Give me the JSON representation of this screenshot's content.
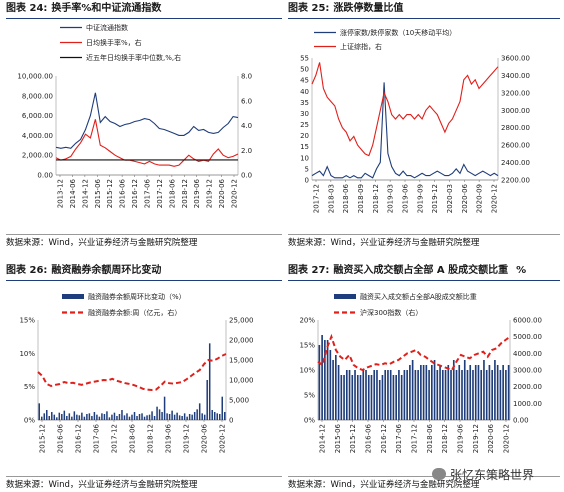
{
  "watermark": {
    "text": "张忆东策略世界",
    "icon": "wechat-icon"
  },
  "charts": [
    {
      "title_label": "图表 24:",
      "title": "换手率%和中证流通指数",
      "source": "数据来源：Wind，兴业证券经济与金融研究院整理",
      "chart_data": {
        "type": "line",
        "x_ticks": [
          "2013-12",
          "2014-06",
          "2014-12",
          "2015-06",
          "2015-12",
          "2016-06",
          "2016-12",
          "2017-06",
          "2017-12",
          "2018-06",
          "2018-12",
          "2019-06",
          "2019-12",
          "2020-06",
          "2020-12"
        ],
        "left_axis": {
          "ticks": [
            "0.00",
            "2,000.00",
            "4,000.00",
            "6,000.00",
            "8,000.00",
            "10,000.00"
          ],
          "range": [
            0,
            10000
          ]
        },
        "right_axis": {
          "ticks": [
            "0.0",
            "2.0",
            "4.0",
            "6.0",
            "8.0"
          ],
          "range": [
            0,
            8
          ]
        },
        "series": [
          {
            "name": "中证流通指数",
            "axis": "left",
            "color": "#1f3d7a",
            "values": [
              2800,
              2700,
              2800,
              2700,
              3200,
              3600,
              4600,
              6000,
              8300,
              5300,
              5900,
              5400,
              5200,
              4900,
              5100,
              5200,
              5400,
              5500,
              5700,
              5600,
              5200,
              4700,
              4600,
              4400,
              4200,
              4000,
              4000,
              4300,
              4900,
              4500,
              4600,
              4300,
              4200,
              4300,
              4800,
              5200,
              5900,
              5800
            ]
          },
          {
            "name": "日均换手率%，右",
            "axis": "right",
            "color": "#e0201b",
            "values": [
              1.4,
              1.2,
              1.3,
              1.5,
              2.1,
              2.6,
              3.3,
              3.0,
              4.5,
              2.4,
              2.2,
              1.9,
              1.6,
              1.4,
              1.2,
              1.2,
              1.1,
              1.0,
              0.9,
              1.1,
              0.9,
              0.8,
              0.8,
              0.8,
              0.7,
              0.8,
              1.2,
              1.6,
              1.3,
              1.1,
              1.2,
              1.1,
              1.7,
              2.1,
              1.6,
              1.4,
              1.5,
              1.7
            ]
          },
          {
            "name": "近五年日均换手率中位数,%,右",
            "axis": "right",
            "color": "#111111",
            "values": [
              1.22,
              1.22
            ]
          }
        ]
      }
    },
    {
      "title_label": "图表 25:",
      "title": "涨跌停数量比值",
      "source": "数据来源：Wind，兴业证券经济与金融研究院整理",
      "chart_data": {
        "type": "line",
        "x_ticks": [
          "2017-12",
          "2018-03",
          "2018-06",
          "2018-09",
          "2018-12",
          "2019-03",
          "2019-06",
          "2019-09",
          "2019-12",
          "2020-03",
          "2020-06",
          "2020-09",
          "2020-12"
        ],
        "left_axis": {
          "ticks": [
            "0",
            "5",
            "10",
            "15",
            "20",
            "25",
            "30",
            "35",
            "40",
            "45",
            "50",
            "55"
          ],
          "range": [
            0,
            55
          ]
        },
        "right_axis": {
          "ticks": [
            "2200.00",
            "2400.00",
            "2600.00",
            "2800.00",
            "3000.00",
            "3200.00",
            "3400.00",
            "3600.00"
          ],
          "range": [
            2200,
            3600
          ]
        },
        "series": [
          {
            "name": "涨停家数/跌停家数（10天移动平均）",
            "axis": "left",
            "color": "#1f3d7a",
            "values": [
              2,
              3,
              4,
              2,
              6,
              2,
              1,
              1,
              1,
              2,
              1,
              2,
              1,
              1,
              3,
              2,
              1,
              5,
              8,
              44,
              12,
              6,
              3,
              2,
              4,
              2,
              2,
              1,
              2,
              3,
              2,
              2,
              3,
              4,
              3,
              2,
              2,
              3,
              5,
              3,
              7,
              4,
              3,
              2,
              3,
              4,
              3,
              2,
              3,
              2
            ]
          },
          {
            "name": "上证综指，右",
            "axis": "right",
            "color": "#e0201b",
            "values": [
              3300,
              3400,
              3550,
              3250,
              3150,
              3100,
              3050,
              2900,
              2800,
              2750,
              2650,
              2700,
              2600,
              2550,
              2500,
              2480,
              2600,
              2800,
              3000,
              3200,
              3100,
              2950,
              2900,
              2950,
              2900,
              2950,
              2950,
              2900,
              2950,
              2900,
              3000,
              3050,
              3000,
              2950,
              2850,
              2750,
              2850,
              2900,
              3000,
              3100,
              3350,
              3400,
              3300,
              3350,
              3250,
              3300,
              3350,
              3400,
              3450,
              3500
            ]
          }
        ]
      }
    },
    {
      "title_label": "图表 26:",
      "title": "融资融券余额周环比变动",
      "source": "数据来源：Wind，兴业证券经济与金融研究院整理",
      "chart_data": {
        "type": "bar",
        "x_ticks": [
          "2015-12",
          "2016-06",
          "2016-12",
          "2017-06",
          "2017-12",
          "2018-06",
          "2018-12",
          "2019-06",
          "2019-12",
          "2020-06",
          "2020-12"
        ],
        "left_axis": {
          "ticks": [
            "0%",
            "5%",
            "10%",
            "15%"
          ],
          "range": [
            0,
            15
          ]
        },
        "right_axis": {
          "ticks": [
            "0",
            "5,000",
            "10,000",
            "15,000",
            "20,000",
            "25,000"
          ],
          "range": [
            0,
            25000
          ]
        },
        "series": [
          {
            "name": "融资融券余额周环比变动（%）",
            "type": "bar",
            "axis": "left",
            "color": "#1f3d7a",
            "values": [
              2.5,
              0.5,
              1.0,
              1.5,
              0.6,
              1.2,
              0.8,
              0.4,
              1.1,
              0.9,
              1.4,
              0.6,
              1.0,
              0.5,
              1.3,
              0.8,
              0.7,
              1.1,
              0.5,
              0.9,
              1.0,
              0.6,
              1.2,
              0.8,
              0.5,
              1.0,
              0.9,
              1.3,
              0.4,
              0.8,
              1.1,
              0.6,
              0.9,
              1.5,
              0.7,
              1.0,
              0.5,
              0.8,
              1.2,
              0.6,
              0.9,
              1.0,
              0.5,
              0.7,
              0.8,
              1.3,
              0.6,
              2.0,
              1.6,
              1.2,
              3.5,
              1.0,
              0.9,
              1.4,
              0.8,
              1.1,
              0.7,
              0.6,
              1.0,
              0.5,
              0.9,
              0.8,
              1.2,
              1.6,
              2.5,
              1.0,
              0.8,
              6.0,
              11.5,
              1.5,
              1.2,
              1.0,
              0.9,
              3.5,
              1.2
            ]
          },
          {
            "name": "融资融券余额:周（亿元，右）",
            "type": "line",
            "axis": "right",
            "color": "#e0201b",
            "values": [
              12000,
              11000,
              9000,
              8500,
              8800,
              9000,
              9500,
              9200,
              9300,
              9000,
              8800,
              9100,
              9400,
              9600,
              9800,
              10000,
              9900,
              10300,
              9800,
              9500,
              9200,
              9000,
              8700,
              8300,
              7800,
              7600,
              7500,
              7600,
              8500,
              9600,
              9200,
              9100,
              9300,
              9500,
              10200,
              11000,
              11800,
              12500,
              14000,
              15000,
              14800,
              15300,
              16000,
              16500
            ]
          }
        ]
      }
    },
    {
      "title_label": "图表 27:",
      "title": "融资买入成交额占全部 A 股成交额比重",
      "title_unit": "%",
      "source": "数据来源：Wind，兴业证券经济与金融研究院整理",
      "chart_data": {
        "type": "bar",
        "x_ticks": [
          "2014-12",
          "2015-06",
          "2015-12",
          "2016-06",
          "2016-12",
          "2017-06",
          "2017-12",
          "2018-06",
          "2018-12",
          "2019-06",
          "2019-12",
          "2020-06",
          "2020-12"
        ],
        "left_axis": {
          "ticks": [
            "0%",
            "5%",
            "10%",
            "15%",
            "20%"
          ],
          "range": [
            0,
            20
          ]
        },
        "right_axis": {
          "ticks": [
            "0.00",
            "1000.00",
            "2000.00",
            "3000.00",
            "4000.00",
            "5000.00",
            "6000.00"
          ],
          "range": [
            0,
            6000
          ]
        },
        "series": [
          {
            "name": "融资买入成交额占全部A股成交额比重",
            "type": "bar",
            "axis": "left",
            "color": "#1f3d7a",
            "values": [
              15,
              17,
              16,
              16,
              14,
              12,
              13,
              11,
              9,
              9,
              10,
              10,
              9,
              10,
              9,
              9,
              10,
              10,
              9,
              9,
              10,
              10,
              8,
              9,
              10,
              10,
              10,
              9,
              9,
              10,
              9,
              10,
              10,
              11,
              12,
              10,
              10,
              11,
              11,
              11,
              10,
              11,
              12,
              10,
              11,
              10,
              10,
              11,
              10,
              12,
              10,
              11,
              10,
              12,
              10,
              11,
              10,
              11,
              11,
              10,
              12,
              10,
              11,
              10,
              12,
              11,
              10,
              11,
              10,
              11
            ]
          },
          {
            "name": "沪深300指数（右）",
            "type": "line",
            "axis": "right",
            "color": "#e0201b",
            "values": [
              3500,
              3300,
              4300,
              5000,
              4200,
              3800,
              3600,
              3900,
              3300,
              3100,
              3000,
              3150,
              3250,
              3350,
              3300,
              3400,
              3350,
              3500,
              3600,
              3800,
              4000,
              4100,
              4200,
              3900,
              3800,
              3600,
              3400,
              3300,
              3200,
              3100,
              3000,
              3500,
              3900,
              3800,
              3700,
              3900,
              4000,
              4100,
              3800,
              4200,
              4300,
              4600,
              4800,
              5000
            ]
          }
        ]
      }
    }
  ]
}
